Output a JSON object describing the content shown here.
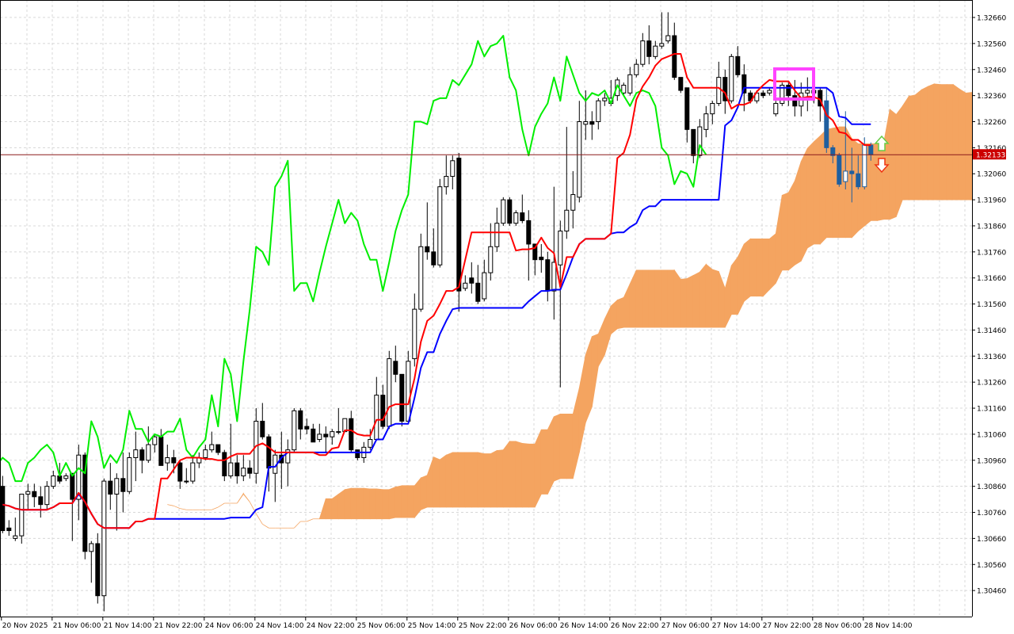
{
  "chart_data": {
    "type": "candlestick",
    "ylim": [
      1.3036,
      1.32727
    ],
    "grid": true,
    "y_ticks": [
      "1.32660",
      "1.32560",
      "1.32460",
      "1.32360",
      "1.32260",
      "1.32160",
      "1.32060",
      "1.31960",
      "1.31860",
      "1.31760",
      "1.31660",
      "1.31560",
      "1.31460",
      "1.31360",
      "1.31260",
      "1.31160",
      "1.31060",
      "1.30960",
      "1.30860",
      "1.30760",
      "1.30660",
      "1.30560",
      "1.30460"
    ],
    "x_tick_labels": [
      "20 Nov 2025",
      "21 Nov 06:00",
      "21 Nov 14:00",
      "21 Nov 22:00",
      "24 Nov 06:00",
      "24 Nov 14:00",
      "24 Nov 22:00",
      "25 Nov 06:00",
      "25 Nov 14:00",
      "25 Nov 22:00",
      "26 Nov 06:00",
      "26 Nov 14:00",
      "26 Nov 22:00",
      "27 Nov 06:00",
      "27 Nov 14:00",
      "27 Nov 22:00",
      "28 Nov 06:00",
      "28 Nov 14:00"
    ],
    "current_price": "1.32133",
    "current_price_value": 1.32133,
    "colors": {
      "bull_body": "#ffffff",
      "bear_body": "#000000",
      "candle_outline": "#000000",
      "in_cloud_candle": "#1f5f9f",
      "tenkan_line": "#ff0000",
      "kijun_line": "#0000ff",
      "lagging_line": "#00ee00",
      "cloud_bullish": "#f4a460",
      "cloud_bearish": "#d8bfd8",
      "price_line": "#8b1a1a",
      "price_tag": "#cc0000",
      "highlight_box": "#ff44ff",
      "up_arrow": "#66cc44",
      "down_arrow": "#ee3311",
      "grid": "#d8d8d8"
    },
    "candles": [
      [
        1.3086,
        1.309,
        1.3068,
        1.3069
      ],
      [
        1.307,
        1.3073,
        1.3067,
        1.3069
      ],
      [
        1.3066,
        1.3074,
        1.3065,
        1.3067
      ],
      [
        1.3067,
        1.3083,
        1.3064,
        1.3083
      ],
      [
        1.3083,
        1.3087,
        1.3077,
        1.3084
      ],
      [
        1.3084,
        1.3087,
        1.3078,
        1.3082
      ],
      [
        1.3082,
        1.3086,
        1.3074,
        1.3079
      ],
      [
        1.3079,
        1.3088,
        1.3077,
        1.3086
      ],
      [
        1.3086,
        1.3092,
        1.3085,
        1.309
      ],
      [
        1.309,
        1.3095,
        1.3087,
        1.3088
      ],
      [
        1.3089,
        1.3091,
        1.3088,
        1.309
      ],
      [
        1.3091,
        1.3091,
        1.3065,
        1.3081
      ],
      [
        1.3081,
        1.3102,
        1.3073,
        1.3098
      ],
      [
        1.3098,
        1.3099,
        1.3058,
        1.3061
      ],
      [
        1.3061,
        1.3065,
        1.3049,
        1.3064
      ],
      [
        1.3064,
        1.3068,
        1.3041,
        1.3044
      ],
      [
        1.3044,
        1.3089,
        1.3038,
        1.3088
      ],
      [
        1.3088,
        1.3095,
        1.3077,
        1.3083
      ],
      [
        1.3083,
        1.3091,
        1.3069,
        1.3089
      ],
      [
        1.3089,
        1.3099,
        1.3076,
        1.3084
      ],
      [
        1.3084,
        1.3099,
        1.3083,
        1.3097
      ],
      [
        1.3097,
        1.3107,
        1.3088,
        1.31
      ],
      [
        1.31,
        1.3101,
        1.3091,
        1.3096
      ],
      [
        1.3096,
        1.3109,
        1.3095,
        1.3102
      ],
      [
        1.3102,
        1.3106,
        1.3099,
        1.3105
      ],
      [
        1.3105,
        1.3108,
        1.3094,
        1.3094
      ],
      [
        1.3095,
        1.3102,
        1.3092,
        1.3097
      ],
      [
        1.3097,
        1.31,
        1.3091,
        1.3095
      ],
      [
        1.3095,
        1.3096,
        1.3085,
        1.3088
      ],
      [
        1.3088,
        1.3093,
        1.3087,
        1.3088
      ],
      [
        1.3088,
        1.3098,
        1.3087,
        1.3095
      ],
      [
        1.3095,
        1.3099,
        1.3093,
        1.3097
      ],
      [
        1.3097,
        1.3102,
        1.3096,
        1.31
      ],
      [
        1.31,
        1.3107,
        1.3099,
        1.3102
      ],
      [
        1.3102,
        1.3102,
        1.3098,
        1.3099
      ],
      [
        1.3099,
        1.31,
        1.3088,
        1.309
      ],
      [
        1.309,
        1.311,
        1.3089,
        1.3095
      ],
      [
        1.3095,
        1.3098,
        1.3087,
        1.309
      ],
      [
        1.309,
        1.3098,
        1.3088,
        1.3093
      ],
      [
        1.3093,
        1.3096,
        1.3089,
        1.3091
      ],
      [
        1.3091,
        1.3116,
        1.3087,
        1.3111
      ],
      [
        1.3111,
        1.3118,
        1.3104,
        1.3105
      ],
      [
        1.3105,
        1.3106,
        1.3084,
        1.3093
      ],
      [
        1.3091,
        1.31,
        1.308,
        1.3098
      ],
      [
        1.3098,
        1.3107,
        1.3085,
        1.3095
      ],
      [
        1.3095,
        1.3104,
        1.3086,
        1.31
      ],
      [
        1.31,
        1.3116,
        1.3099,
        1.3115
      ],
      [
        1.3115,
        1.3116,
        1.3104,
        1.3108
      ],
      [
        1.3109,
        1.3112,
        1.3106,
        1.3108
      ],
      [
        1.3108,
        1.311,
        1.3103,
        1.3103
      ],
      [
        1.3104,
        1.311,
        1.3103,
        1.3106
      ],
      [
        1.3106,
        1.3109,
        1.3099,
        1.3105
      ],
      [
        1.3105,
        1.3108,
        1.3102,
        1.3107
      ],
      [
        1.3107,
        1.3116,
        1.3106,
        1.3107
      ],
      [
        1.3107,
        1.3112,
        1.3107,
        1.3112
      ],
      [
        1.3112,
        1.3115,
        1.3099,
        1.31
      ],
      [
        1.31,
        1.31,
        1.3096,
        1.3097
      ],
      [
        1.3097,
        1.3103,
        1.3095,
        1.3101
      ],
      [
        1.3101,
        1.3108,
        1.31,
        1.3104
      ],
      [
        1.3104,
        1.3128,
        1.3104,
        1.3121
      ],
      [
        1.3121,
        1.3125,
        1.3108,
        1.3109
      ],
      [
        1.3109,
        1.3138,
        1.3108,
        1.3135
      ],
      [
        1.3134,
        1.314,
        1.3126,
        1.3129
      ],
      [
        1.3129,
        1.3129,
        1.3109,
        1.3111
      ],
      [
        1.3111,
        1.3138,
        1.3111,
        1.3134
      ],
      [
        1.3135,
        1.316,
        1.3132,
        1.3154
      ],
      [
        1.3154,
        1.3183,
        1.3153,
        1.3178
      ],
      [
        1.3178,
        1.3195,
        1.3173,
        1.3176
      ],
      [
        1.3176,
        1.3185,
        1.317,
        1.3171
      ],
      [
        1.3171,
        1.3204,
        1.317,
        1.3201
      ],
      [
        1.3201,
        1.3213,
        1.3198,
        1.3205
      ],
      [
        1.3205,
        1.3213,
        1.32,
        1.3211
      ],
      [
        1.3212,
        1.3214,
        1.3153,
        1.3161
      ],
      [
        1.3162,
        1.3167,
        1.3161,
        1.3164
      ],
      [
        1.3166,
        1.3172,
        1.316,
        1.3164
      ],
      [
        1.3164,
        1.3171,
        1.3156,
        1.3157
      ],
      [
        1.3158,
        1.3173,
        1.3157,
        1.3168
      ],
      [
        1.3168,
        1.3187,
        1.3165,
        1.3178
      ],
      [
        1.3178,
        1.3193,
        1.3176,
        1.3187
      ],
      [
        1.3187,
        1.3197,
        1.3186,
        1.3196
      ],
      [
        1.3196,
        1.3197,
        1.3186,
        1.3187
      ],
      [
        1.3187,
        1.3192,
        1.3186,
        1.3191
      ],
      [
        1.3191,
        1.3198,
        1.3187,
        1.3188
      ],
      [
        1.3188,
        1.3192,
        1.3165,
        1.3179
      ],
      [
        1.3179,
        1.3179,
        1.3167,
        1.3173
      ],
      [
        1.3174,
        1.3179,
        1.3168,
        1.3173
      ],
      [
        1.3173,
        1.3176,
        1.3157,
        1.3161
      ],
      [
        1.3161,
        1.3201,
        1.315,
        1.3172
      ],
      [
        1.3171,
        1.3188,
        1.3124,
        1.3184
      ],
      [
        1.3184,
        1.3224,
        1.3181,
        1.3192
      ],
      [
        1.3192,
        1.3207,
        1.3185,
        1.3198
      ],
      [
        1.3197,
        1.3234,
        1.3195,
        1.3226
      ],
      [
        1.3225,
        1.3238,
        1.3219,
        1.3226
      ],
      [
        1.3226,
        1.323,
        1.3219,
        1.3225
      ],
      [
        1.3226,
        1.3235,
        1.3223,
        1.3234
      ],
      [
        1.3234,
        1.3237,
        1.3232,
        1.3235
      ],
      [
        1.3233,
        1.3242,
        1.3232,
        1.3235
      ],
      [
        1.3236,
        1.3243,
        1.3234,
        1.3242
      ],
      [
        1.3237,
        1.3241,
        1.3236,
        1.324
      ],
      [
        1.3237,
        1.3247,
        1.3236,
        1.3244
      ],
      [
        1.3244,
        1.325,
        1.3243,
        1.3248
      ],
      [
        1.3248,
        1.326,
        1.3247,
        1.3257
      ],
      [
        1.3257,
        1.3263,
        1.3248,
        1.3251
      ],
      [
        1.3251,
        1.3257,
        1.325,
        1.3255
      ],
      [
        1.3255,
        1.3268,
        1.3254,
        1.3256
      ],
      [
        1.3257,
        1.3268,
        1.3256,
        1.3259
      ],
      [
        1.3259,
        1.3264,
        1.3242,
        1.3243
      ],
      [
        1.3243,
        1.3243,
        1.3237,
        1.3238
      ],
      [
        1.3239,
        1.3239,
        1.3218,
        1.3223
      ],
      [
        1.3223,
        1.3223,
        1.321,
        1.3213
      ],
      [
        1.3213,
        1.3227,
        1.3212,
        1.3224
      ],
      [
        1.3223,
        1.3232,
        1.322,
        1.3229
      ],
      [
        1.3229,
        1.3234,
        1.3225,
        1.3233
      ],
      [
        1.3233,
        1.3249,
        1.3232,
        1.3243
      ],
      [
        1.3243,
        1.3246,
        1.3229,
        1.3234
      ],
      [
        1.3234,
        1.3252,
        1.3233,
        1.3251
      ],
      [
        1.3251,
        1.3255,
        1.3243,
        1.3244
      ],
      [
        1.3244,
        1.3248,
        1.323,
        1.3237
      ],
      [
        1.3237,
        1.3238,
        1.3233,
        1.3234
      ],
      [
        1.3234,
        1.3238,
        1.3233,
        1.3237
      ],
      [
        1.3237,
        1.3238,
        1.3235,
        1.3236
      ],
      [
        1.3237,
        1.3239,
        1.3236,
        1.3238
      ],
      [
        1.3229,
        1.3234,
        1.3228,
        1.3233
      ],
      [
        1.3233,
        1.3241,
        1.3232,
        1.324
      ],
      [
        1.324,
        1.3241,
        1.3232,
        1.3236
      ],
      [
        1.3236,
        1.3242,
        1.3228,
        1.3232
      ],
      [
        1.3232,
        1.3241,
        1.3228,
        1.3237
      ],
      [
        1.3237,
        1.3243,
        1.323,
        1.3238
      ],
      [
        1.3238,
        1.3239,
        1.3233,
        1.3237
      ],
      [
        1.3238,
        1.3239,
        1.3226,
        1.3232
      ],
      [
        1.3234,
        1.3239,
        1.3214,
        1.3216
      ],
      [
        1.3216,
        1.3217,
        1.321,
        1.3213
      ],
      [
        1.3213,
        1.3214,
        1.3201,
        1.3202
      ],
      [
        1.3203,
        1.323,
        1.32,
        1.3207
      ],
      [
        1.3207,
        1.3216,
        1.3195,
        1.3206
      ],
      [
        1.3206,
        1.3213,
        1.32,
        1.3201
      ],
      [
        1.3201,
        1.322,
        1.32,
        1.3217
      ],
      [
        1.3217,
        1.3218,
        1.3211,
        1.32133
      ]
    ]
  }
}
